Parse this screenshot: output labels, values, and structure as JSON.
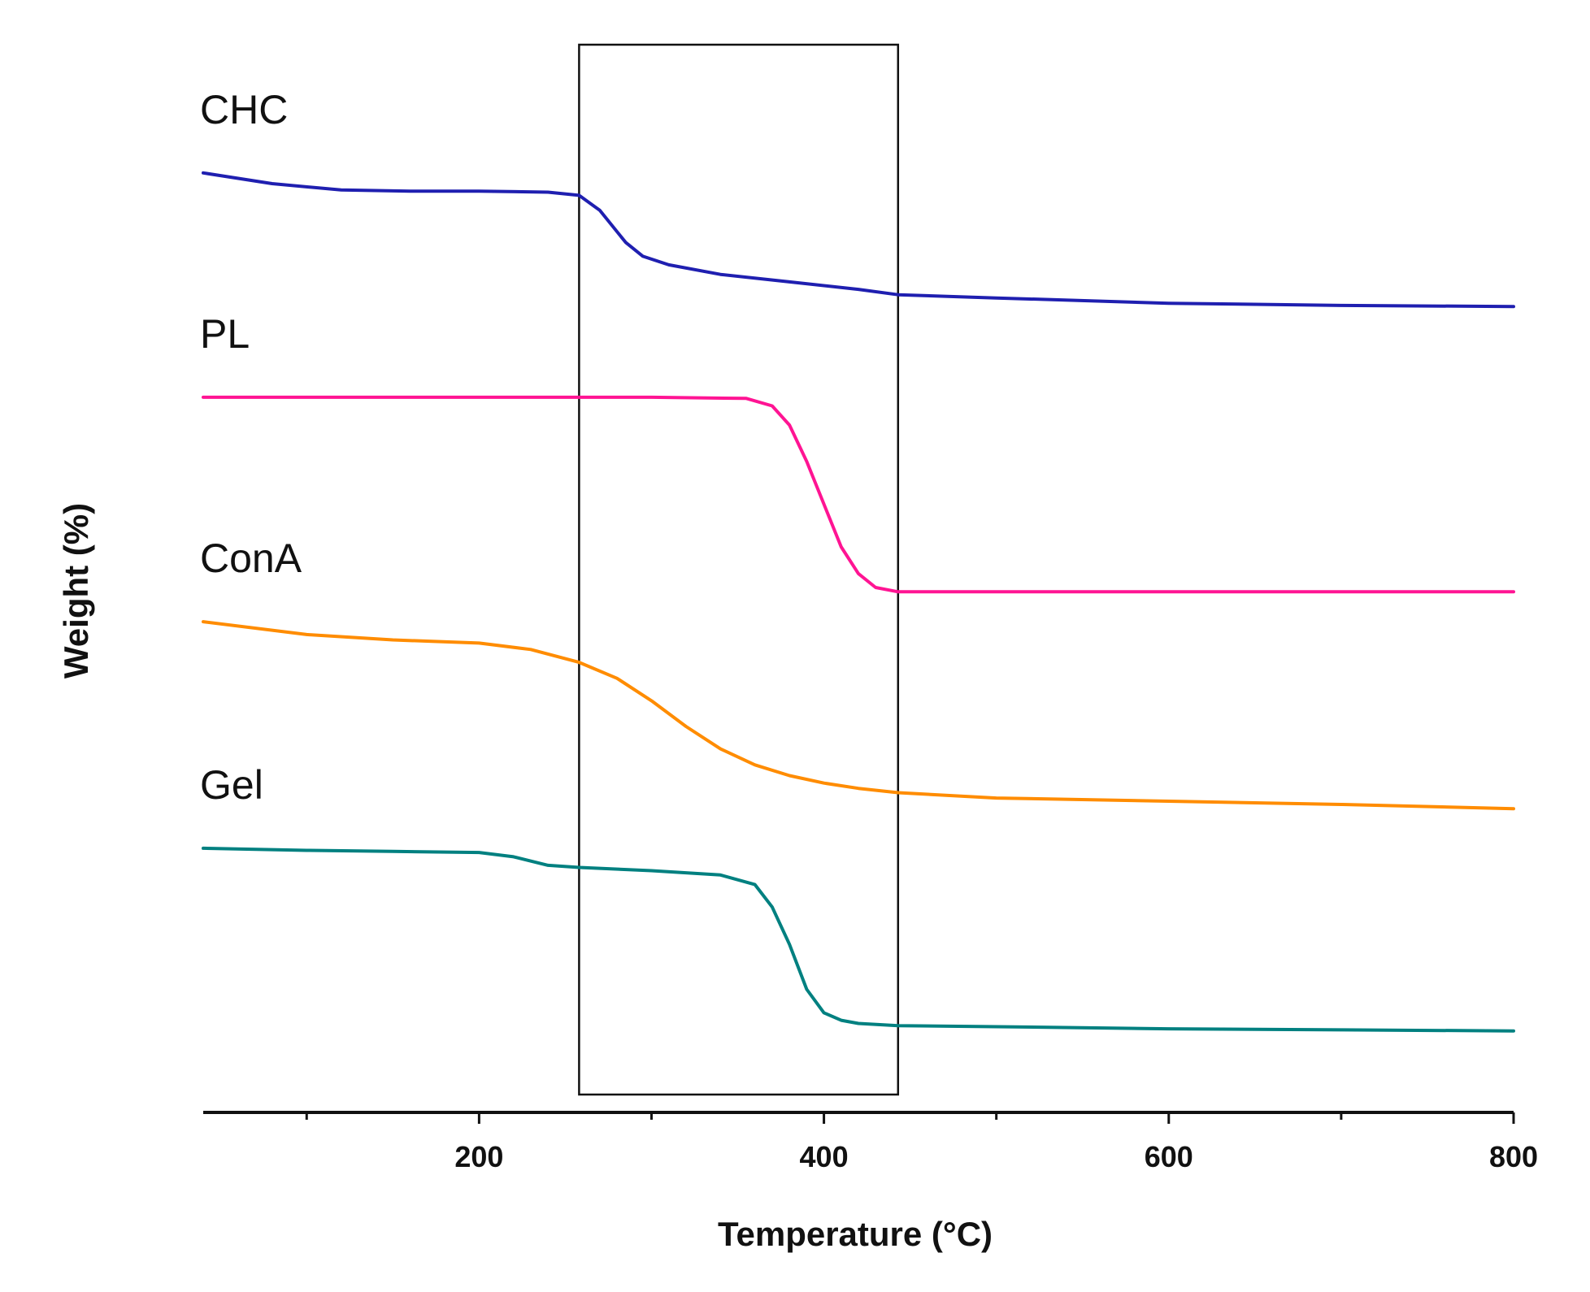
{
  "chart_data": {
    "type": "line",
    "title": "",
    "xlabel": "Temperature (°C)",
    "ylabel": "Weight (%)",
    "xlim": [
      40,
      800
    ],
    "ylim": [
      0,
      100
    ],
    "xticks": [
      200,
      400,
      600,
      800
    ],
    "minor_xticks": [
      100,
      300,
      500,
      700
    ],
    "y_ticks_shown": false,
    "grid": false,
    "highlight_box": {
      "x_from": 258,
      "x_to": 443,
      "label": ""
    },
    "series": [
      {
        "name": "CHC",
        "color": "#1f1fb0",
        "x": [
          40,
          80,
          120,
          160,
          200,
          240,
          258,
          270,
          285,
          295,
          310,
          340,
          380,
          420,
          443,
          500,
          600,
          700,
          800
        ],
        "y": [
          88.0,
          87.0,
          86.4,
          86.3,
          86.3,
          86.2,
          85.9,
          84.5,
          81.5,
          80.2,
          79.4,
          78.5,
          77.8,
          77.1,
          76.6,
          76.3,
          75.8,
          75.6,
          75.5
        ]
      },
      {
        "name": "PL",
        "color": "#ff1493",
        "x": [
          40,
          100,
          200,
          300,
          355,
          370,
          380,
          390,
          400,
          410,
          420,
          430,
          443,
          500,
          600,
          700,
          800
        ],
        "y": [
          67.0,
          67.0,
          67.0,
          67.0,
          66.9,
          66.2,
          64.4,
          61.0,
          57.0,
          53.0,
          50.5,
          49.2,
          48.8,
          48.8,
          48.8,
          48.8,
          48.8
        ]
      },
      {
        "name": "ConA",
        "color": "#ff8c00",
        "x": [
          40,
          100,
          150,
          200,
          230,
          258,
          280,
          300,
          320,
          340,
          360,
          380,
          400,
          420,
          443,
          500,
          600,
          700,
          800
        ],
        "y": [
          46.0,
          44.8,
          44.3,
          44.0,
          43.4,
          42.2,
          40.7,
          38.6,
          36.2,
          34.1,
          32.6,
          31.6,
          30.9,
          30.4,
          30.0,
          29.5,
          29.2,
          28.9,
          28.5
        ]
      },
      {
        "name": "Gel",
        "color": "#008080",
        "x": [
          40,
          100,
          150,
          200,
          220,
          240,
          258,
          300,
          340,
          360,
          370,
          380,
          390,
          400,
          410,
          420,
          443,
          500,
          600,
          700,
          800
        ],
        "y": [
          24.8,
          24.6,
          24.5,
          24.4,
          24.0,
          23.2,
          23.0,
          22.7,
          22.3,
          21.4,
          19.3,
          15.8,
          11.6,
          9.4,
          8.7,
          8.4,
          8.2,
          8.1,
          7.9,
          7.8,
          7.7
        ]
      }
    ]
  }
}
